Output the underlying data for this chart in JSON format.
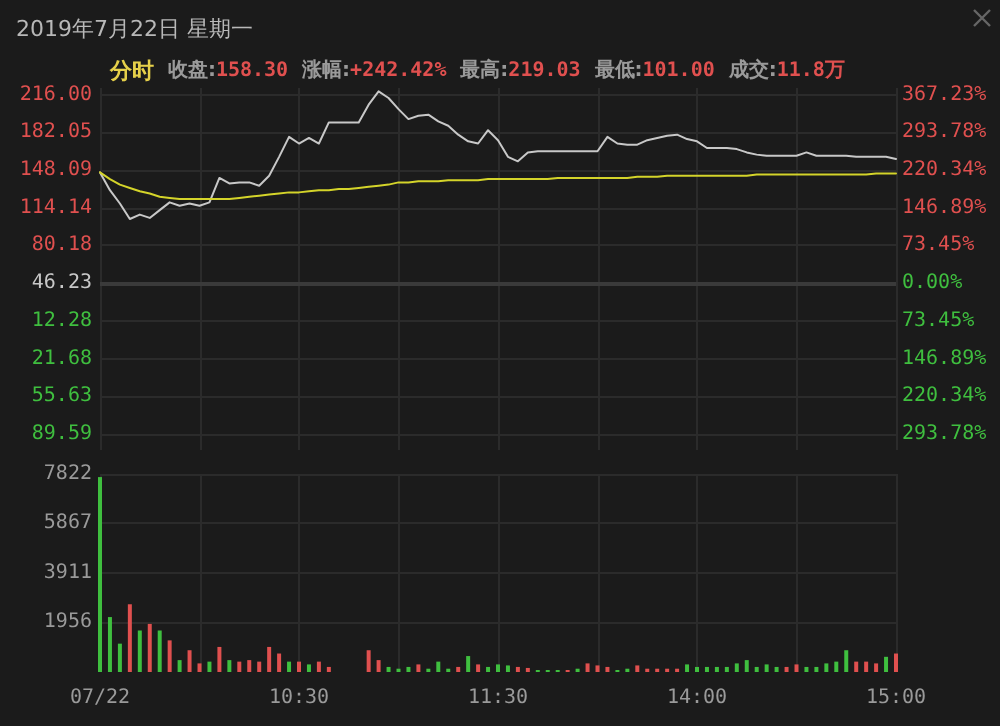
{
  "chart_data": [
    {
      "type": "line",
      "title": "2019年7月22日 星期一",
      "subtitle": "分时 收盘:158.30 涨幅:+242.42% 最高:219.03 最低:101.00 成交:11.8万",
      "series": [
        {
          "color": "#c8c8c8",
          "values": [
            146,
            130,
            118,
            104,
            108,
            105,
            112,
            119,
            116,
            118,
            116,
            119,
            141,
            136,
            137,
            137,
            134,
            143,
            160,
            178,
            172,
            177,
            172,
            191,
            191,
            191,
            191,
            207,
            219,
            213,
            203,
            194,
            197,
            198,
            192,
            188,
            180,
            174,
            172,
            184,
            175,
            160,
            156,
            164,
            165,
            165,
            165,
            165,
            165,
            165,
            165,
            178,
            172,
            171,
            171,
            175,
            177,
            179,
            180,
            176,
            174,
            168,
            168,
            168,
            167,
            164,
            162,
            161,
            161,
            161,
            161,
            164,
            161,
            161,
            161,
            161,
            160,
            160,
            160,
            160,
            158
          ]
        },
        {
          "color": "#d4d42a",
          "values": [
            146,
            140,
            135,
            132,
            129,
            127,
            124,
            123,
            122,
            122,
            122,
            122,
            122,
            122,
            123,
            124,
            125,
            126,
            127,
            128,
            128,
            129,
            130,
            130,
            131,
            131,
            132,
            133,
            134,
            135,
            137,
            137,
            138,
            138,
            138,
            139,
            139,
            139,
            139,
            140,
            140,
            140,
            140,
            140,
            140,
            140,
            141,
            141,
            141,
            141,
            141,
            141,
            141,
            141,
            142,
            142,
            142,
            143,
            143,
            143,
            143,
            143,
            143,
            143,
            143,
            143,
            144,
            144,
            144,
            144,
            144,
            144,
            144,
            144,
            144,
            144,
            144,
            144,
            145,
            145,
            145
          ]
        }
      ],
      "ylim": [
        -104,
        222
      ],
      "yticks": [
        {
          "value": 216,
          "label": "216.00"
        },
        182.05,
        148.09,
        114.14,
        80.18,
        46.23,
        12.28,
        {
          "value": -21.68,
          "label": "21.68"
        },
        {
          "value": -55.63,
          "label": "55.63"
        },
        {
          "value": -89.59,
          "label": "89.59"
        }
      ],
      "y2lim": [
        -324.96,
        380.21
      ],
      "y2ticks": [
        {
          "value": 367.23,
          "label": "367.23%"
        },
        {
          "value": 293.78,
          "label": "293.78%"
        },
        {
          "value": 220.34,
          "label": "220.34%"
        },
        {
          "value": 146.89,
          "label": "146.89%"
        },
        {
          "value": 73.45,
          "label": "73.45%"
        },
        {
          "value": 0,
          "label": "0.00%"
        },
        {
          "value": -73.45,
          "label": "73.45%"
        },
        {
          "value": -146.89,
          "label": "146.89%"
        },
        {
          "value": -220.34,
          "label": "220.34%"
        },
        {
          "value": -293.78,
          "label": "293.78%"
        }
      ],
      "ref_lines": [
        {
          "axis": "y",
          "value": 46.23,
          "color": "#3a3a3a"
        }
      ],
      "grid": true,
      "marker": "none",
      "line_style": "solid",
      "tick_labels": "y"
    },
    {
      "type": "bar",
      "categories": [
        "07/22",
        null,
        null,
        null,
        null,
        null,
        null,
        null,
        null,
        null,
        null,
        null,
        null,
        null,
        null,
        null,
        null,
        null,
        null,
        null,
        "10:30",
        null,
        null,
        null,
        null,
        null,
        null,
        null,
        null,
        null,
        null,
        null,
        null,
        null,
        null,
        null,
        null,
        null,
        null,
        null,
        "11:30",
        null,
        null,
        null,
        null,
        null,
        null,
        null,
        null,
        null,
        null,
        null,
        null,
        null,
        null,
        null,
        null,
        null,
        null,
        null,
        "14:00",
        null,
        null,
        null,
        null,
        null,
        null,
        null,
        null,
        null,
        null,
        null,
        null,
        null,
        null,
        null,
        null,
        null,
        null,
        null,
        "15:00"
      ],
      "values": [
        7700,
        2170,
        1120,
        2680,
        1640,
        1900,
        1640,
        1250,
        470,
        860,
        340,
        410,
        990,
        470,
        410,
        470,
        410,
        990,
        730,
        410,
        410,
        300,
        410,
        200,
        null,
        null,
        null,
        860,
        470,
        200,
        130,
        200,
        300,
        130,
        410,
        130,
        200,
        630,
        300,
        200,
        300,
        260,
        200,
        160,
        80,
        80,
        80,
        80,
        130,
        340,
        260,
        200,
        80,
        130,
        260,
        130,
        130,
        130,
        130,
        300,
        200,
        200,
        200,
        200,
        340,
        470,
        200,
        300,
        200,
        200,
        300,
        200,
        200,
        340,
        410,
        860,
        410,
        410,
        340,
        600,
        730
      ],
      "colors": [
        "#3fbf3f",
        "#3fbf3f",
        "#3fbf3f",
        "#e0504f",
        "#3fbf3f",
        "#e0504f",
        "#3fbf3f",
        "#e0504f",
        "#3fbf3f",
        "#e0504f",
        "#e0504f",
        "#3fbf3f",
        "#e0504f",
        "#3fbf3f",
        "#e0504f",
        "#e0504f",
        "#e0504f",
        "#e0504f",
        "#e0504f",
        "#3fbf3f",
        "#e0504f",
        "#3fbf3f",
        "#e0504f",
        "#e0504f",
        "#e0504f",
        "#e0504f",
        "#e0504f",
        "#e0504f",
        "#e0504f",
        "#3fbf3f",
        "#3fbf3f",
        "#3fbf3f",
        "#e0504f",
        "#3fbf3f",
        "#3fbf3f",
        "#3fbf3f",
        "#e0504f",
        "#3fbf3f",
        "#e0504f",
        "#3fbf3f",
        "#3fbf3f",
        "#3fbf3f",
        "#e0504f",
        "#e0504f",
        "#3fbf3f",
        "#3fbf3f",
        "#3fbf3f",
        "#e0504f",
        "#3fbf3f",
        "#e0504f",
        "#e0504f",
        "#e0504f",
        "#3fbf3f",
        "#3fbf3f",
        "#e0504f",
        "#e0504f",
        "#e0504f",
        "#e0504f",
        "#e0504f",
        "#3fbf3f",
        "#3fbf3f",
        "#3fbf3f",
        "#3fbf3f",
        "#3fbf3f",
        "#3fbf3f",
        "#3fbf3f",
        "#3fbf3f",
        "#3fbf3f",
        "#3fbf3f",
        "#e0504f",
        "#e0504f",
        "#3fbf3f",
        "#3fbf3f",
        "#3fbf3f",
        "#3fbf3f",
        "#3fbf3f",
        "#e0504f",
        "#e0504f",
        "#e0504f",
        "#3fbf3f",
        "#e0504f"
      ],
      "ylim": [
        0,
        7822
      ],
      "yticks": [
        1956,
        3911,
        5867,
        7822
      ],
      "grid": true
    }
  ]
}
